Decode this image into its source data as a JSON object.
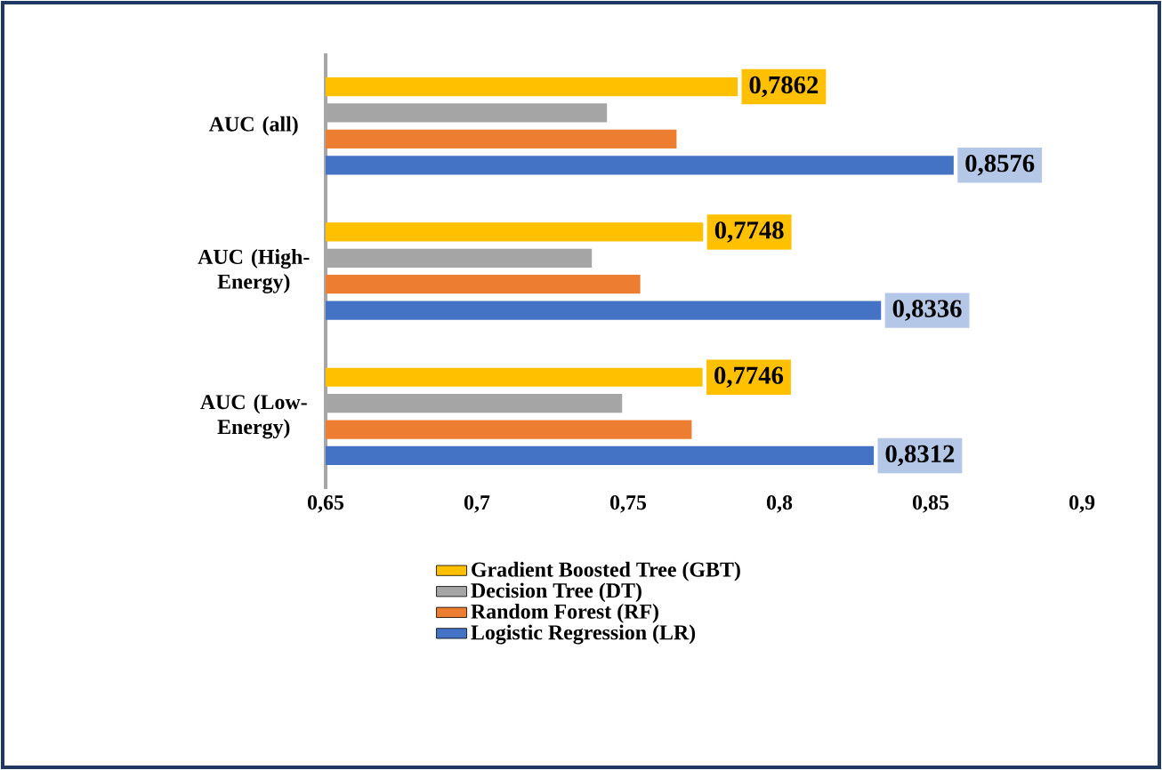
{
  "chart_data": {
    "type": "bar",
    "orientation": "horizontal",
    "categories": [
      "AUC (all)",
      "AUC (High-Energy)",
      "AUC (Low-Energy)"
    ],
    "series": [
      {
        "name": "Gradient Boosted Tree (GBT)",
        "color": "#ffc000",
        "values": [
          0.7862,
          0.7748,
          0.7746
        ],
        "value_labels": [
          "0,7862",
          "0,7748",
          "0,7746"
        ]
      },
      {
        "name": "Decision Tree (DT)",
        "color": "#a5a5a5",
        "values": [
          0.743,
          0.738,
          0.748
        ]
      },
      {
        "name": "Random Forest (RF)",
        "color": "#ed7d31",
        "values": [
          0.766,
          0.754,
          0.771
        ]
      },
      {
        "name": "Logistic Regression (LR)",
        "color": "#4472c4",
        "values": [
          0.8576,
          0.8336,
          0.8312
        ],
        "value_labels": [
          "0,8576",
          "0,8336",
          "0,8312"
        ]
      }
    ],
    "xlim": [
      0.65,
      0.9
    ],
    "xticks": [
      {
        "value": 0.65,
        "label": "0,65"
      },
      {
        "value": 0.7,
        "label": "0,7"
      },
      {
        "value": 0.75,
        "label": "0,75"
      },
      {
        "value": 0.8,
        "label": "0,8"
      },
      {
        "value": 0.85,
        "label": "0,85"
      },
      {
        "value": 0.9,
        "label": "0,9"
      }
    ],
    "grid": false,
    "legend": "bottom"
  }
}
